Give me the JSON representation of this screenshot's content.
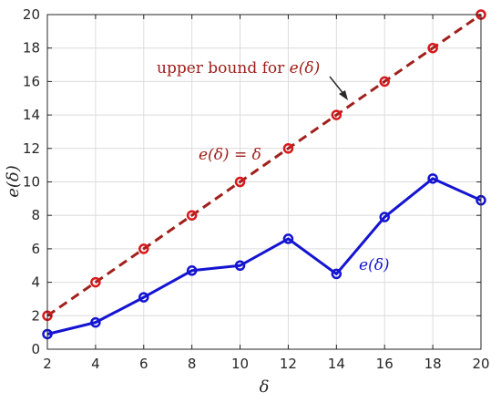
{
  "chart_data": {
    "type": "line",
    "xlabel": "δ",
    "ylabel": "e(δ)",
    "xlim": [
      2,
      20
    ],
    "ylim": [
      0,
      20
    ],
    "xticks": [
      2,
      4,
      6,
      8,
      10,
      12,
      14,
      16,
      18,
      20
    ],
    "yticks": [
      0,
      2,
      4,
      6,
      8,
      10,
      12,
      14,
      16,
      18,
      20
    ],
    "grid": true,
    "x": [
      2,
      4,
      6,
      8,
      10,
      12,
      14,
      16,
      18,
      20
    ],
    "series": [
      {
        "values": [
          2,
          4,
          6,
          8,
          10,
          12,
          14,
          16,
          18,
          20
        ],
        "color": "#a0201c",
        "marker_color": "#d7191c",
        "style": "dashed"
      },
      {
        "values": [
          0.9,
          1.6,
          3.1,
          4.7,
          5.0,
          6.6,
          4.5,
          7.9,
          10.2,
          8.9
        ],
        "color": "#1414d2",
        "style": "solid"
      }
    ],
    "annotations": {
      "upper_bound": {
        "text": "upper bound for ",
        "math": "e(δ)",
        "color": "#a0201c"
      },
      "identity": {
        "math": "e(δ) = δ",
        "color": "#a0201c"
      },
      "series_label": {
        "math": "e(δ)",
        "color": "#1414d2"
      }
    }
  }
}
